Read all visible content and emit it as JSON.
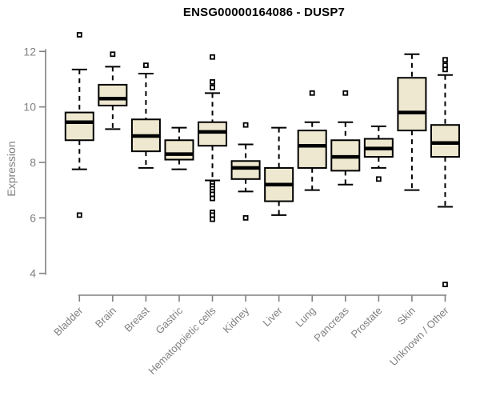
{
  "title": "ENSG00000164086 - DUSP7",
  "chart_data": {
    "type": "boxplot",
    "title": "ENSG00000164086 - DUSP7",
    "xlabel": "",
    "ylabel": "Expression",
    "ylim": [
      3.9,
      12.7
    ],
    "yticks": [
      4,
      6,
      8,
      10,
      12
    ],
    "grid": false,
    "legend": "none",
    "colors": {
      "box_fill": "#EDE8CF",
      "box_stroke": "#000000",
      "median": "#000000",
      "whisker": "#000000",
      "outlier_stroke": "#000000",
      "outlier_fill": "#ffffff",
      "axis": "#808080",
      "tick_text": "#808080",
      "title_text": "#000000",
      "background": "#ffffff"
    },
    "categories": [
      "Bladder",
      "Brain",
      "Breast",
      "Gastric",
      "Hematopoietic cells",
      "Kidney",
      "Liver",
      "Lung",
      "Pancreas",
      "Prostate",
      "Skin",
      "Unknown / Other"
    ],
    "boxes": [
      {
        "category": "Bladder",
        "whisker_low": 7.75,
        "q1": 8.8,
        "median": 9.45,
        "q3": 9.8,
        "whisker_high": 11.35,
        "outliers": [
          12.6,
          6.1
        ]
      },
      {
        "category": "Brain",
        "whisker_low": 9.2,
        "q1": 10.05,
        "median": 10.3,
        "q3": 10.8,
        "whisker_high": 11.45,
        "outliers": [
          11.9
        ]
      },
      {
        "category": "Breast",
        "whisker_low": 7.8,
        "q1": 8.4,
        "median": 8.95,
        "q3": 9.55,
        "whisker_high": 11.2,
        "outliers": [
          11.5
        ]
      },
      {
        "category": "Gastric",
        "whisker_low": 7.75,
        "q1": 8.1,
        "median": 8.3,
        "q3": 8.8,
        "whisker_high": 9.25,
        "outliers": []
      },
      {
        "category": "Hematopoietic cells",
        "whisker_low": 7.35,
        "q1": 8.6,
        "median": 9.1,
        "q3": 9.45,
        "whisker_high": 10.5,
        "outliers": [
          11.8,
          10.9,
          10.7,
          7.25,
          7.15,
          7.05,
          6.95,
          6.85,
          6.7,
          6.2,
          6.1,
          5.95
        ]
      },
      {
        "category": "Kidney",
        "whisker_low": 6.95,
        "q1": 7.4,
        "median": 7.8,
        "q3": 8.05,
        "whisker_high": 8.65,
        "outliers": [
          9.35,
          6.0
        ]
      },
      {
        "category": "Liver",
        "whisker_low": 6.1,
        "q1": 6.6,
        "median": 7.2,
        "q3": 7.8,
        "whisker_high": 9.25,
        "outliers": []
      },
      {
        "category": "Lung",
        "whisker_low": 7.0,
        "q1": 7.8,
        "median": 8.6,
        "q3": 9.15,
        "whisker_high": 9.45,
        "outliers": [
          10.5
        ]
      },
      {
        "category": "Pancreas",
        "whisker_low": 7.2,
        "q1": 7.7,
        "median": 8.2,
        "q3": 8.8,
        "whisker_high": 9.45,
        "outliers": [
          10.5
        ]
      },
      {
        "category": "Prostate",
        "whisker_low": 7.8,
        "q1": 8.2,
        "median": 8.5,
        "q3": 8.85,
        "whisker_high": 9.3,
        "outliers": [
          7.4
        ]
      },
      {
        "category": "Skin",
        "whisker_low": 7.0,
        "q1": 9.15,
        "median": 9.8,
        "q3": 11.05,
        "whisker_high": 11.9,
        "outliers": []
      },
      {
        "category": "Unknown / Other",
        "whisker_low": 6.4,
        "q1": 8.2,
        "median": 8.7,
        "q3": 9.35,
        "whisker_high": 11.15,
        "outliers": [
          11.7,
          11.5,
          11.35,
          3.6
        ]
      }
    ]
  }
}
